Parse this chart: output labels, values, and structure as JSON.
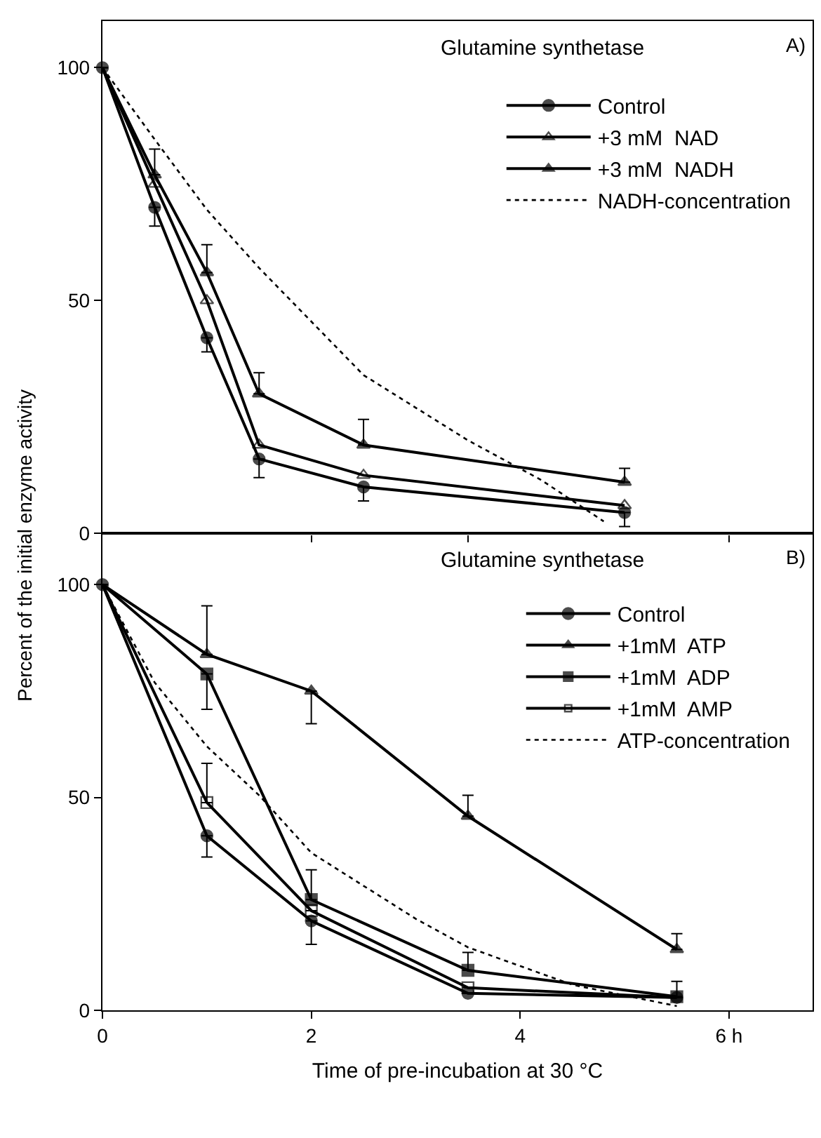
{
  "chart_data": [
    {
      "type": "line",
      "title": "Glutamine synthetase",
      "xlim": [
        0,
        6.8
      ],
      "ylim": [
        0,
        110
      ],
      "xticks": [
        {
          "value": 2,
          "label": null
        },
        {
          "value": 3.5,
          "label": null
        },
        {
          "value": 6,
          "label": null
        }
      ],
      "yticks": [
        0,
        50,
        100
      ],
      "tick_labels": "y",
      "legend": "top right",
      "grid": false,
      "annotations": [
        "A)"
      ],
      "series": [
        {
          "name": "Control",
          "color": "#000000",
          "marker": "circle",
          "x": [
            0,
            0.5,
            1,
            1.5,
            2.5,
            5
          ],
          "values": [
            100,
            70,
            42,
            16,
            10,
            4.5
          ],
          "errors": [
            null,
            [
              66,
              70
            ],
            [
              39,
              42
            ],
            [
              12,
              16
            ],
            [
              7,
              10
            ],
            [
              1.5,
              4.5
            ]
          ]
        },
        {
          "name": "+3 mM  NAD",
          "color": "#000000",
          "marker": "triangle-open",
          "x": [
            0,
            0.5,
            1,
            1.5,
            2.5,
            5
          ],
          "values": [
            100,
            75,
            50,
            19,
            12.5,
            6
          ]
        },
        {
          "name": "+3 mM  NADH",
          "color": "#000000",
          "marker": "triangle",
          "x": [
            0,
            0.5,
            1,
            1.5,
            2.5,
            5
          ],
          "values": [
            100,
            77,
            56,
            30,
            19,
            11
          ],
          "errors": [
            null,
            [
              77,
              82.5
            ],
            [
              56,
              62
            ],
            [
              30,
              34.5
            ],
            [
              19,
              24.5
            ],
            [
              11,
              14
            ]
          ]
        },
        {
          "name": "NADH-concentration",
          "color": "#000000",
          "marker": "none",
          "line_style": "dotted",
          "x": [
            0,
            0.5,
            1,
            1.5,
            2,
            2.5,
            3.5,
            4.2,
            4.8
          ],
          "values": [
            100,
            84.6,
            69.5,
            57,
            45.5,
            34,
            20,
            11.5,
            2.6
          ]
        }
      ]
    },
    {
      "type": "line",
      "title": "Glutamine synthetase",
      "xlabel": "Time of pre-incubation at 30 °C",
      "ylabel": "Percent of the initial enzyme activity",
      "xlim": [
        0,
        6.8
      ],
      "ylim": [
        0,
        112
      ],
      "xticks": [
        0,
        2,
        4,
        {
          "value": 6,
          "label": "6 h"
        }
      ],
      "yticks": [
        0,
        50,
        100
      ],
      "legend": "top right",
      "grid": false,
      "annotations": [
        "B)"
      ],
      "series": [
        {
          "name": "Control",
          "color": "#000000",
          "marker": "circle",
          "x": [
            0,
            1,
            2,
            3.5,
            5.5
          ],
          "values": [
            100,
            41,
            21,
            4,
            3
          ],
          "errors": [
            null,
            [
              36,
              41
            ],
            [
              15.5,
              21
            ],
            null,
            null
          ]
        },
        {
          "name": "+1mM  ATP",
          "color": "#000000",
          "marker": "triangle",
          "x": [
            0,
            1,
            2,
            3.5,
            5.5
          ],
          "values": [
            100,
            83.6,
            75,
            45.6,
            14.3
          ],
          "errors": [
            null,
            [
              83.6,
              95
            ],
            [
              67.3,
              75
            ],
            [
              45.6,
              50.5
            ],
            [
              14.3,
              18
            ]
          ]
        },
        {
          "name": "+1mM  ADP",
          "color": "#000000",
          "marker": "square",
          "x": [
            0,
            1,
            2,
            3.5,
            5.5
          ],
          "values": [
            100,
            79,
            26,
            9.4,
            3.2
          ],
          "errors": [
            null,
            [
              70.7,
              79
            ],
            [
              26,
              33
            ],
            [
              9.4,
              13.6
            ],
            [
              3.2,
              6.8
            ]
          ]
        },
        {
          "name": "+1mM  AMP",
          "color": "#000000",
          "marker": "square-open",
          "x": [
            0,
            1,
            2,
            3.5,
            5.5
          ],
          "values": [
            100,
            48.8,
            23.4,
            5.3,
            3
          ],
          "errors": [
            null,
            [
              48.8,
              58
            ],
            null,
            null,
            null
          ]
        },
        {
          "name": "ATP-concentration",
          "color": "#000000",
          "marker": "none",
          "line_style": "dotted",
          "x": [
            0,
            0.5,
            1,
            1.5,
            2,
            3,
            3.5,
            4.5,
            5.5
          ],
          "values": [
            100,
            77,
            62,
            50.5,
            37,
            21.5,
            14.8,
            6,
            1
          ]
        }
      ]
    }
  ]
}
